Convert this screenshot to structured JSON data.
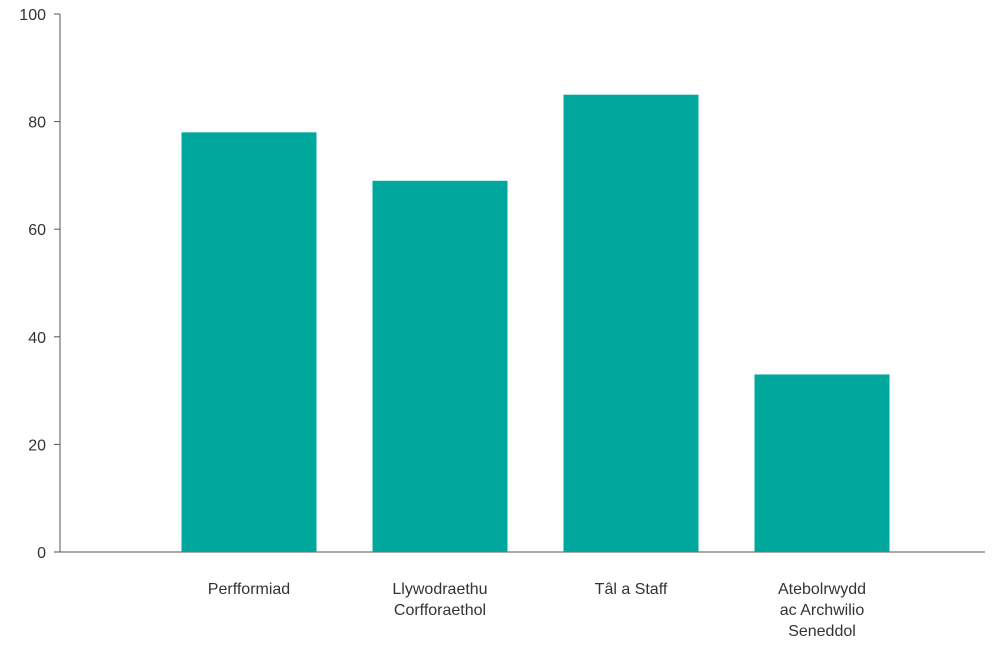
{
  "chart_data": {
    "type": "bar",
    "categories": [
      [
        "Perfformiad"
      ],
      [
        "Llywodraethu",
        "Corfforaethol"
      ],
      [
        "Tâl a Staff"
      ],
      [
        "Atebolrwydd",
        "ac Archwilio",
        "Seneddol"
      ]
    ],
    "values": [
      78,
      69,
      85,
      33
    ],
    "ylim": [
      0,
      100
    ],
    "yticks": [
      "0",
      "20",
      "40",
      "60",
      "80",
      "100"
    ],
    "grid": false,
    "bar_color": "#00a79d",
    "axis_color": "#555555"
  }
}
